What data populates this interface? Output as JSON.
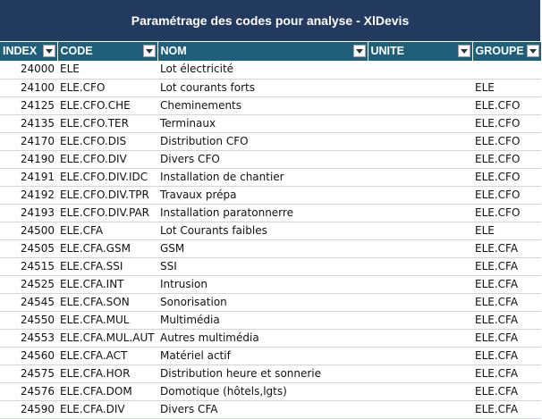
{
  "title": "Paramétrage des codes pour analyse - XlDevis",
  "colors": {
    "title_bg": "#223a5e",
    "header_bg": "#1f5f7a"
  },
  "columns": [
    {
      "label": "INDEX",
      "icon": "filter-dropdown-icon"
    },
    {
      "label": "CODE",
      "icon": "filter-dropdown-icon"
    },
    {
      "label": "NOM",
      "icon": "filter-dropdown-icon"
    },
    {
      "label": "UNITE",
      "icon": "filter-dropdown-icon"
    },
    {
      "label": "GROUPE",
      "icon": "filter-dropdown-icon"
    }
  ],
  "rows": [
    {
      "index": "24000",
      "code": "ELE",
      "nom": "Lot électricité",
      "unite": "",
      "groupe": ""
    },
    {
      "index": "24100",
      "code": "ELE.CFO",
      "nom": "Lot courants forts",
      "unite": "",
      "groupe": "ELE"
    },
    {
      "index": "24125",
      "code": "ELE.CFO.CHE",
      "nom": "Cheminements",
      "unite": "",
      "groupe": "ELE.CFO"
    },
    {
      "index": "24135",
      "code": "ELE.CFO.TER",
      "nom": "Terminaux",
      "unite": "",
      "groupe": "ELE.CFO"
    },
    {
      "index": "24170",
      "code": "ELE.CFO.DIS",
      "nom": "Distribution CFO",
      "unite": "",
      "groupe": "ELE.CFO"
    },
    {
      "index": "24190",
      "code": "ELE.CFO.DIV",
      "nom": "Divers CFO",
      "unite": "",
      "groupe": "ELE.CFO"
    },
    {
      "index": "24191",
      "code": "ELE.CFO.DIV.IDC",
      "nom": "Installation de chantier",
      "unite": "",
      "groupe": "ELE.CFO"
    },
    {
      "index": "24192",
      "code": "ELE.CFO.DIV.TPR",
      "nom": "Travaux prépa",
      "unite": "",
      "groupe": "ELE.CFO"
    },
    {
      "index": "24193",
      "code": "ELE.CFO.DIV.PAR",
      "nom": "Installation paratonnerre",
      "unite": "",
      "groupe": "ELE.CFO"
    },
    {
      "index": "24500",
      "code": "ELE.CFA",
      "nom": "Lot Courants faibles",
      "unite": "",
      "groupe": "ELE"
    },
    {
      "index": "24505",
      "code": "ELE.CFA.GSM",
      "nom": "GSM",
      "unite": "",
      "groupe": "ELE.CFA"
    },
    {
      "index": "24515",
      "code": "ELE.CFA.SSI",
      "nom": "SSI",
      "unite": "",
      "groupe": "ELE.CFA"
    },
    {
      "index": "24525",
      "code": "ELE.CFA.INT",
      "nom": "Intrusion",
      "unite": "",
      "groupe": "ELE.CFA"
    },
    {
      "index": "24545",
      "code": "ELE.CFA.SON",
      "nom": "Sonorisation",
      "unite": "",
      "groupe": "ELE.CFA"
    },
    {
      "index": "24550",
      "code": "ELE.CFA.MUL",
      "nom": "Multimédia",
      "unite": "",
      "groupe": "ELE.CFA"
    },
    {
      "index": "24553",
      "code": "ELE.CFA.MUL.AUT",
      "nom": "Autres multimédia",
      "unite": "",
      "groupe": "ELE.CFA"
    },
    {
      "index": "24560",
      "code": "ELE.CFA.ACT",
      "nom": "Matériel actif",
      "unite": "",
      "groupe": "ELE.CFA"
    },
    {
      "index": "24575",
      "code": "ELE.CFA.HOR",
      "nom": "Distribution heure et sonnerie",
      "unite": "",
      "groupe": "ELE.CFA"
    },
    {
      "index": "24576",
      "code": "ELE.CFA.DOM",
      "nom": "Domotique (hôtels,lgts)",
      "unite": "",
      "groupe": "ELE.CFA"
    },
    {
      "index": "24590",
      "code": "ELE.CFA.DIV",
      "nom": "Divers CFA",
      "unite": "",
      "groupe": "ELE.CFA"
    }
  ]
}
